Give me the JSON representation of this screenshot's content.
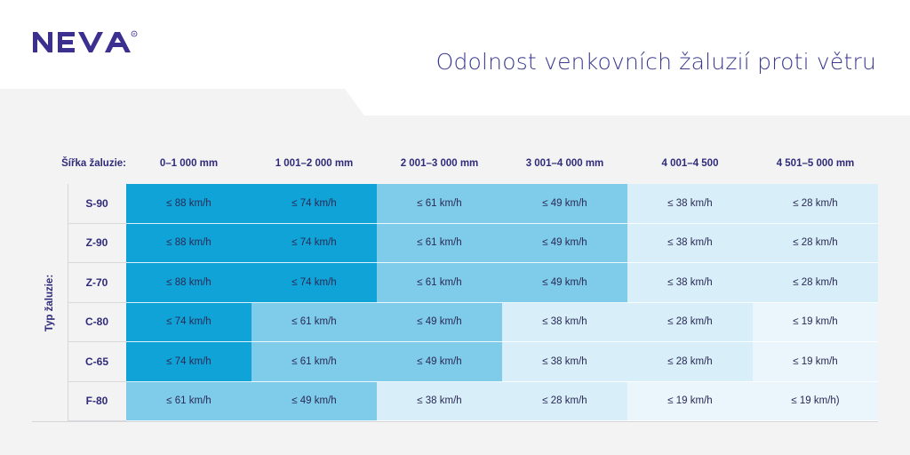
{
  "brand": {
    "name": "NEVA",
    "color": "#3b2f8f"
  },
  "title": "Odolnost venkovních žaluzií proti větru",
  "table": {
    "corner_label": "Šířka žaluzie:",
    "row_axis_label": "Typ žaluzie:",
    "columns": [
      "0–1 000 mm",
      "1 001–2 000 mm",
      "2 001–3 000 mm",
      "3 001–4 000 mm",
      "4 001–4 500",
      "4 501–5 000 mm"
    ],
    "rows": [
      {
        "type": "S-90",
        "values": [
          "≤ 88 km/h",
          "≤ 74 km/h",
          "≤ 61 km/h",
          "≤ 49 km/h",
          "≤ 38 km/h",
          "≤ 28 km/h"
        ],
        "levels": [
          0,
          0,
          1,
          1,
          2,
          3
        ]
      },
      {
        "type": "Z-90",
        "values": [
          "≤ 88 km/h",
          "≤ 74 km/h",
          "≤ 61 km/h",
          "≤ 49 km/h",
          "≤ 38 km/h",
          "≤ 28 km/h"
        ],
        "levels": [
          0,
          0,
          1,
          1,
          2,
          3
        ]
      },
      {
        "type": "Z-70",
        "values": [
          "≤ 88 km/h",
          "≤ 74 km/h",
          "≤ 61 km/h",
          "≤ 49 km/h",
          "≤ 38 km/h",
          "≤ 28 km/h"
        ],
        "levels": [
          0,
          0,
          1,
          1,
          2,
          3
        ]
      },
      {
        "type": "C-80",
        "values": [
          "≤ 74 km/h",
          "≤ 61 km/h",
          "≤ 49 km/h",
          "≤ 38 km/h",
          "≤ 28 km/h",
          "≤ 19 km/h"
        ],
        "levels": [
          0,
          1,
          1,
          2,
          3,
          4
        ]
      },
      {
        "type": "C-65",
        "values": [
          "≤ 74 km/h",
          "≤ 61 km/h",
          "≤ 49 km/h",
          "≤ 38 km/h",
          "≤ 28 km/h",
          "≤ 19 km/h"
        ],
        "levels": [
          0,
          1,
          1,
          2,
          3,
          4
        ]
      },
      {
        "type": "F-80",
        "values": [
          "≤ 61 km/h",
          "≤ 49 km/h",
          "≤ 38 km/h",
          "≤ 28 km/h",
          "≤ 19 km/h",
          "≤ 19 km/h)"
        ],
        "levels": [
          1,
          1,
          2,
          2,
          4,
          4
        ]
      }
    ],
    "level_colors": [
      "#0fa3d8",
      "#7fcbea",
      "#d8eef9",
      "#d8eef9",
      "#eaf6fc"
    ]
  }
}
